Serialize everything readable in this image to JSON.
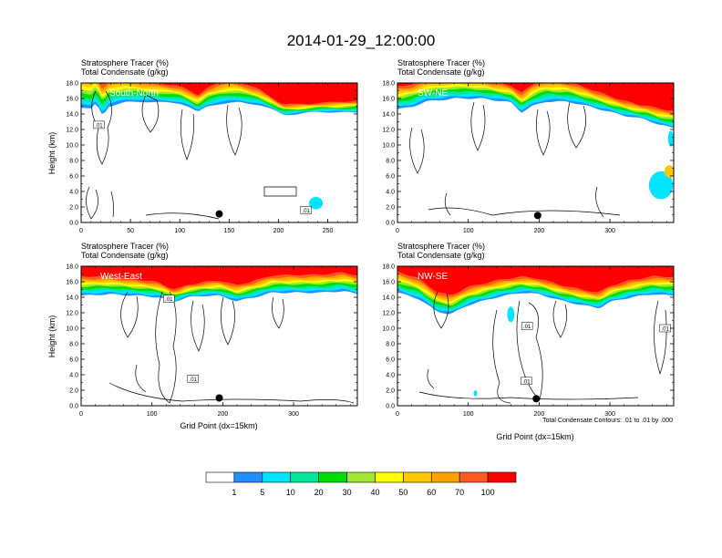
{
  "figure": {
    "title": "2014-01-29_12:00:00",
    "colorbar_labels": [
      "1",
      "5",
      "10",
      "20",
      "30",
      "40",
      "50",
      "60",
      "70",
      "100"
    ],
    "colors": [
      "#ffffff",
      "#1e90ff",
      "#00e5ff",
      "#00e89a",
      "#00dd00",
      "#a0e632",
      "#ffff00",
      "#ffc800",
      "#ffa000",
      "#ff5a1e",
      "#ff0000"
    ],
    "contour_color": "#000000",
    "marker_color": "#000000"
  },
  "chart_data": [
    {
      "type": "heatmap",
      "header_line1": "Stratosphere Tracer   (%)",
      "header_line2": "Total Condensate   (g/kg)",
      "panel_label": "South-North",
      "ylabel": "Height (km)",
      "xlabel": "",
      "ylim": [
        0,
        18
      ],
      "yticks": [
        "0.0",
        "2.0",
        "4.0",
        "6.0",
        "8.0",
        "10.0",
        "12.0",
        "14.0",
        "16.0",
        "18.0"
      ],
      "xlim": [
        0,
        280
      ],
      "xticks": [
        0,
        50,
        100,
        150,
        200,
        250
      ],
      "marker": {
        "x": 140,
        "y": 1.1
      },
      "contour_labels": [
        {
          "x": 18,
          "y": 12.6,
          "text": ".01"
        },
        {
          "x": 228,
          "y": 1.6,
          "text": ".01"
        }
      ],
      "tracer_top": [
        [
          0,
          14.8
        ],
        [
          10,
          14.6
        ],
        [
          15,
          15.4
        ],
        [
          22,
          13.8
        ],
        [
          28,
          15.0
        ],
        [
          35,
          15.2
        ],
        [
          45,
          15.5
        ],
        [
          60,
          15.6
        ],
        [
          80,
          15.5
        ],
        [
          100,
          15.4
        ],
        [
          110,
          14.9
        ],
        [
          118,
          14.2
        ],
        [
          128,
          15.0
        ],
        [
          140,
          15.3
        ],
        [
          160,
          15.5
        ],
        [
          180,
          15.2
        ],
        [
          195,
          14.5
        ],
        [
          205,
          13.9
        ],
        [
          220,
          14.0
        ],
        [
          240,
          14.3
        ],
        [
          260,
          14.2
        ],
        [
          280,
          14.2
        ]
      ],
      "tracer_bands": [
        {
          "min": 40,
          "offsets": [
            [
              0,
              3.0
            ],
            [
              60,
              1.8
            ],
            [
              110,
              1.2
            ],
            [
              150,
              2.0
            ],
            [
              200,
              0.8
            ],
            [
              240,
              0.6
            ],
            [
              280,
              0.9
            ]
          ]
        },
        {
          "min": 70,
          "offsets": [
            [
              0,
              4.0
            ],
            [
              60,
              2.6
            ],
            [
              110,
              2.1
            ],
            [
              150,
              2.7
            ],
            [
              200,
              1.4
            ],
            [
              240,
              1.2
            ],
            [
              280,
              1.6
            ]
          ]
        }
      ],
      "blobs": [
        {
          "x": 238,
          "y": 2.5,
          "w": 14,
          "h": 1.6,
          "level": 5
        }
      ]
    },
    {
      "type": "heatmap",
      "header_line1": "Stratosphere Tracer   (%)",
      "header_line2": "Total Condensate   (g/kg)",
      "panel_label": "SW-NE",
      "ylabel": "",
      "xlabel": "",
      "ylim": [
        0,
        18
      ],
      "yticks": [
        "0.0",
        "2.0",
        "4.0",
        "6.0",
        "8.0",
        "10.0",
        "12.0",
        "14.0",
        "16.0",
        "18.0"
      ],
      "xlim": [
        0,
        390
      ],
      "xticks": [
        0,
        100,
        200,
        300
      ],
      "marker": {
        "x": 198,
        "y": 0.9
      },
      "contour_labels": [],
      "tracer_top": [
        [
          0,
          14.6
        ],
        [
          20,
          14.9
        ],
        [
          40,
          15.6
        ],
        [
          80,
          16.0
        ],
        [
          120,
          16.0
        ],
        [
          160,
          15.5
        ],
        [
          175,
          14.2
        ],
        [
          190,
          15.0
        ],
        [
          210,
          15.6
        ],
        [
          240,
          15.6
        ],
        [
          270,
          15.0
        ],
        [
          290,
          14.5
        ],
        [
          320,
          13.8
        ],
        [
          350,
          13.3
        ],
        [
          370,
          12.6
        ],
        [
          390,
          12.2
        ]
      ],
      "tracer_bands": [
        {
          "min": 40,
          "offsets": [
            [
              0,
              2.0
            ],
            [
              80,
              1.8
            ],
            [
              160,
              1.3
            ],
            [
              200,
              2.0
            ],
            [
              280,
              1.3
            ],
            [
              340,
              1.0
            ],
            [
              390,
              1.2
            ]
          ]
        },
        {
          "min": 70,
          "offsets": [
            [
              0,
              2.8
            ],
            [
              80,
              2.6
            ],
            [
              160,
              2.2
            ],
            [
              200,
              2.8
            ],
            [
              280,
              2.2
            ],
            [
              340,
              1.8
            ],
            [
              390,
              2.4
            ]
          ]
        }
      ],
      "blobs": [
        {
          "x": 372,
          "y": 4.8,
          "w": 34,
          "h": 3.6,
          "level": 5
        },
        {
          "x": 384,
          "y": 6.6,
          "w": 14,
          "h": 1.6,
          "level": 50
        },
        {
          "x": 386,
          "y": 10.8,
          "w": 8,
          "h": 2.0,
          "level": 5
        }
      ]
    },
    {
      "type": "heatmap",
      "header_line1": "Stratosphere Tracer   (%)",
      "header_line2": "Total Condensate   (g/kg)",
      "panel_label": "West-East",
      "ylabel": "Height (km)",
      "xlabel": "Grid Point (dx=15km)",
      "ylim": [
        0,
        18
      ],
      "yticks": [
        "0.0",
        "2.0",
        "4.0",
        "6.0",
        "8.0",
        "10.0",
        "12.0",
        "14.0",
        "16.0",
        "18.0"
      ],
      "xlim": [
        0,
        390
      ],
      "xticks": [
        0,
        100,
        200,
        300
      ],
      "marker": {
        "x": 195,
        "y": 1.0
      },
      "contour_labels": [
        {
          "x": 124,
          "y": 13.8,
          "text": ".01"
        },
        {
          "x": 158,
          "y": 3.5,
          "text": ".01"
        }
      ],
      "tracer_top": [
        [
          0,
          14.2
        ],
        [
          40,
          14.4
        ],
        [
          80,
          14.2
        ],
        [
          110,
          14.0
        ],
        [
          130,
          13.4
        ],
        [
          150,
          14.0
        ],
        [
          175,
          14.2
        ],
        [
          195,
          14.2
        ],
        [
          220,
          13.5
        ],
        [
          245,
          14.0
        ],
        [
          270,
          14.6
        ],
        [
          300,
          14.6
        ],
        [
          340,
          14.6
        ],
        [
          370,
          14.8
        ],
        [
          390,
          14.4
        ]
      ],
      "tracer_bands": [
        {
          "min": 40,
          "offsets": [
            [
              0,
              1.6
            ],
            [
              100,
              1.2
            ],
            [
              140,
              0.8
            ],
            [
              200,
              1.2
            ],
            [
              280,
              1.4
            ],
            [
              390,
              1.6
            ]
          ]
        },
        {
          "min": 70,
          "offsets": [
            [
              0,
              2.4
            ],
            [
              100,
              2.0
            ],
            [
              140,
              1.6
            ],
            [
              200,
              2.0
            ],
            [
              280,
              2.2
            ],
            [
              390,
              2.3
            ]
          ]
        }
      ],
      "blobs": []
    },
    {
      "type": "heatmap",
      "header_line1": "Stratosphere Tracer   (%)",
      "header_line2": "Total Condensate   (g/kg)",
      "panel_label": "NW-SE",
      "ylabel": "",
      "xlabel": "Grid Point (dx=15km)",
      "ylim": [
        0,
        18
      ],
      "yticks": [
        "0.0",
        "2.0",
        "4.0",
        "6.0",
        "8.0",
        "10.0",
        "12.0",
        "14.0",
        "16.0",
        "18.0"
      ],
      "xlim": [
        0,
        390
      ],
      "xticks": [
        0,
        100,
        200,
        300
      ],
      "marker": {
        "x": 196,
        "y": 0.9
      },
      "contour_labels": [
        {
          "x": 183,
          "y": 10.3,
          "text": ".01"
        },
        {
          "x": 182,
          "y": 3.2,
          "text": ".01"
        },
        {
          "x": 378,
          "y": 10.0,
          "text": ".01"
        }
      ],
      "tracer_top": [
        [
          0,
          14.6
        ],
        [
          30,
          13.8
        ],
        [
          55,
          12.2
        ],
        [
          75,
          11.8
        ],
        [
          100,
          13.0
        ],
        [
          140,
          14.0
        ],
        [
          175,
          14.6
        ],
        [
          200,
          14.4
        ],
        [
          230,
          13.6
        ],
        [
          260,
          13.0
        ],
        [
          285,
          12.6
        ],
        [
          300,
          13.4
        ],
        [
          330,
          14.0
        ],
        [
          360,
          14.4
        ],
        [
          390,
          14.2
        ]
      ],
      "tracer_bands": [
        {
          "min": 40,
          "offsets": [
            [
              0,
              1.8
            ],
            [
              60,
              1.6
            ],
            [
              120,
              1.4
            ],
            [
              200,
              1.2
            ],
            [
              280,
              1.2
            ],
            [
              390,
              1.5
            ]
          ]
        },
        {
          "min": 70,
          "offsets": [
            [
              0,
              2.6
            ],
            [
              60,
              2.4
            ],
            [
              120,
              2.2
            ],
            [
              200,
              2.0
            ],
            [
              280,
              2.0
            ],
            [
              390,
              2.4
            ]
          ]
        }
      ],
      "blobs": [
        {
          "x": 160,
          "y": 11.8,
          "w": 10,
          "h": 2.0,
          "level": 5
        },
        {
          "x": 110,
          "y": 1.6,
          "w": 5,
          "h": 0.8,
          "level": 5
        }
      ],
      "contour_note": "Total Condensate Contours: .01 to .01 by .000"
    }
  ]
}
